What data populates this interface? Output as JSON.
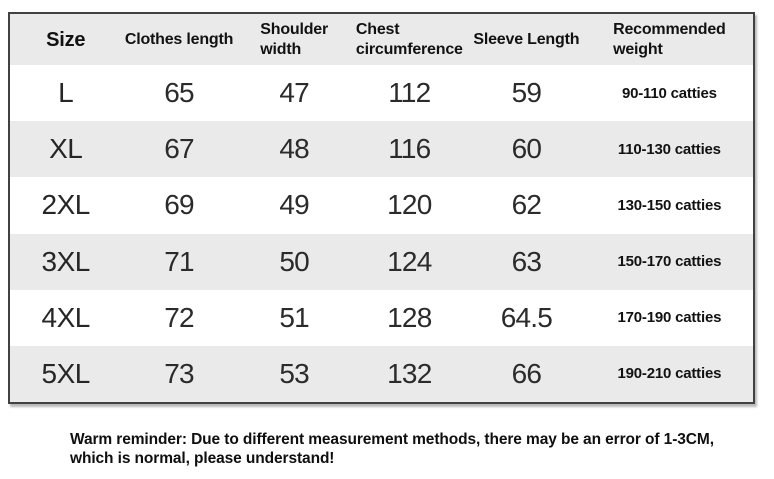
{
  "chart_data": {
    "type": "table",
    "columns": [
      "Size",
      "Clothes length",
      "Shoulder width",
      "Chest circumference",
      "Sleeve Length",
      "Recommended weight"
    ],
    "rows": [
      [
        "L",
        65,
        47,
        112,
        59,
        "90-110 catties"
      ],
      [
        "XL",
        67,
        48,
        116,
        60,
        "110-130 catties"
      ],
      [
        "2XL",
        69,
        49,
        120,
        62,
        "130-150 catties"
      ],
      [
        "3XL",
        71,
        50,
        124,
        63,
        "150-170 catties"
      ],
      [
        "4XL",
        72,
        51,
        128,
        64.5,
        "170-190 catties"
      ],
      [
        "5XL",
        73,
        53,
        132,
        66,
        "190-210 catties"
      ]
    ],
    "note": "Warm reminder: Due to different measurement methods, there may be an error of 1-3CM, which is normal, please understand!",
    "layout_hints": {
      "striped_rows": true,
      "stripe_color": "#ebeaea",
      "header_background": "#ebeaea"
    }
  },
  "table": {
    "header": {
      "size": "Size",
      "clothes_length": "Clothes length",
      "shoulder_width": "Shoulder\nwidth",
      "chest": "Chest\ncircumference",
      "sleeve": "Sleeve Length",
      "weight": "Recommended\nweight"
    },
    "rows": [
      {
        "size": "L",
        "clothes_length": "65",
        "shoulder_width": "47",
        "chest": "112",
        "sleeve": "59",
        "weight": "90-110 catties"
      },
      {
        "size": "XL",
        "clothes_length": "67",
        "shoulder_width": "48",
        "chest": "116",
        "sleeve": "60",
        "weight": "110-130 catties"
      },
      {
        "size": "2XL",
        "clothes_length": "69",
        "shoulder_width": "49",
        "chest": "120",
        "sleeve": "62",
        "weight": "130-150 catties"
      },
      {
        "size": "3XL",
        "clothes_length": "71",
        "shoulder_width": "50",
        "chest": "124",
        "sleeve": "63",
        "weight": "150-170 catties"
      },
      {
        "size": "4XL",
        "clothes_length": "72",
        "shoulder_width": "51",
        "chest": "128",
        "sleeve": "64.5",
        "weight": "170-190 catties"
      },
      {
        "size": "5XL",
        "clothes_length": "73",
        "shoulder_width": "53",
        "chest": "132",
        "sleeve": "66",
        "weight": "190-210 catties"
      }
    ]
  },
  "note": {
    "line1": "Warm reminder: Due to different measurement methods, there may be an error of 1-3CM,",
    "line2": "which is normal, please understand!"
  },
  "colors": {
    "stripe": "#ebeaea",
    "border": "#414141",
    "background": "#ffffff",
    "text": "#121212"
  }
}
